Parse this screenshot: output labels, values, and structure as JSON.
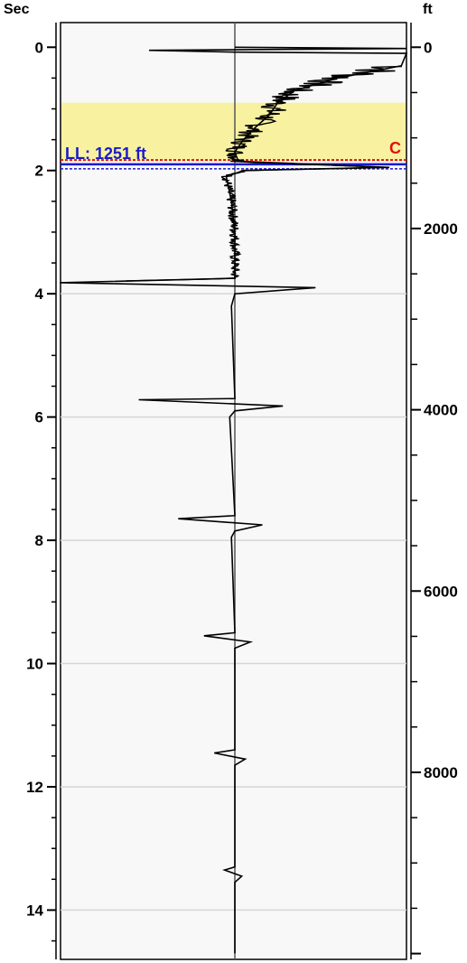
{
  "chart_data": {
    "type": "line",
    "title": "",
    "left_axis": {
      "label": "Sec",
      "range": [
        -0.4,
        14.8
      ],
      "major_ticks": [
        0,
        2,
        4,
        6,
        8,
        10,
        12,
        14
      ],
      "minor_step": 0.5
    },
    "right_axis": {
      "label": "ft",
      "major_ticks": [
        0,
        2000,
        4000,
        6000,
        8000
      ],
      "minor_step": 500,
      "ft_per_sec_approx": 680
    },
    "grid": {
      "horizontal_at_sec": [
        4,
        6,
        8,
        10,
        12,
        14
      ],
      "center_line": true
    },
    "shaded_zone": {
      "from_sec": 0.9,
      "to_sec": 1.85,
      "color": "#f8f2a0"
    },
    "annotations": {
      "level_label": "LL: 1251 ft",
      "level_color": "#1a1acc",
      "level_at_sec": 1.9,
      "marker_letter": "C",
      "marker_color": "#e01010",
      "marker_at_sec": 1.83
    },
    "series": [
      {
        "points_sec_amp": [
          [
            0.0,
            0.0
          ],
          [
            0.02,
            1.0
          ],
          [
            0.05,
            -0.5
          ],
          [
            0.08,
            0.0
          ],
          [
            0.1,
            1.0
          ],
          [
            0.3,
            0.97
          ],
          [
            0.5,
            0.6
          ],
          [
            0.7,
            0.35
          ],
          [
            0.9,
            0.25
          ],
          [
            1.1,
            0.2
          ],
          [
            1.3,
            0.12
          ],
          [
            1.5,
            0.05
          ],
          [
            1.7,
            0.0
          ],
          [
            1.85,
            0.02
          ],
          [
            1.95,
            0.9
          ],
          [
            2.0,
            0.05
          ],
          [
            2.1,
            -0.05
          ],
          [
            2.5,
            -0.02
          ],
          [
            3.0,
            0.0
          ],
          [
            3.75,
            0.0
          ],
          [
            3.82,
            -1.02
          ],
          [
            3.9,
            0.47
          ],
          [
            4.0,
            0.0
          ],
          [
            4.2,
            -0.02
          ],
          [
            5.7,
            0.0
          ],
          [
            5.72,
            -0.56
          ],
          [
            5.82,
            0.28
          ],
          [
            5.9,
            0.0
          ],
          [
            6.0,
            -0.03
          ],
          [
            7.6,
            0.0
          ],
          [
            7.65,
            -0.33
          ],
          [
            7.75,
            0.16
          ],
          [
            7.85,
            0.0
          ],
          [
            7.95,
            -0.02
          ],
          [
            9.5,
            0.0
          ],
          [
            9.55,
            -0.18
          ],
          [
            9.65,
            0.09
          ],
          [
            9.75,
            0.0
          ],
          [
            11.4,
            0.0
          ],
          [
            11.45,
            -0.12
          ],
          [
            11.55,
            0.06
          ],
          [
            11.65,
            0.0
          ],
          [
            13.3,
            0.0
          ],
          [
            13.35,
            -0.06
          ],
          [
            13.45,
            0.04
          ],
          [
            13.55,
            0.0
          ],
          [
            14.7,
            0.0
          ]
        ]
      }
    ]
  }
}
